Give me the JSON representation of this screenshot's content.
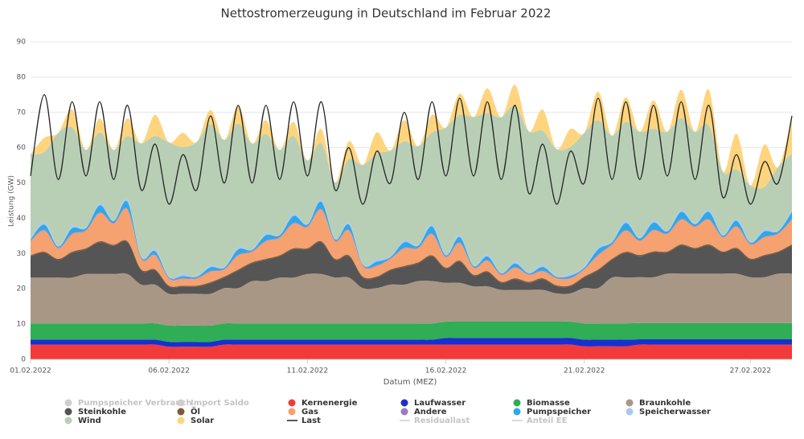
{
  "chart_data": {
    "type": "stacked_area",
    "title": "Nettostromerzeugung in Deutschland im Februar 2022",
    "xlabel": "Datum (MEZ)",
    "ylabel": "Leistung (GW)",
    "x": [
      0,
      12,
      24,
      36,
      48,
      60,
      72,
      84,
      96,
      108,
      120,
      132,
      144,
      156,
      168,
      180,
      192,
      204,
      216,
      228,
      240,
      252,
      264,
      276,
      288,
      300,
      312,
      324,
      336,
      348,
      360,
      372,
      384,
      396,
      408,
      420,
      432,
      444,
      456,
      468,
      480,
      492,
      504,
      516,
      528,
      540,
      552,
      564,
      576,
      588,
      600,
      612,
      624,
      636,
      648,
      660
    ],
    "xlim": [
      0,
      660
    ],
    "xticks": [
      {
        "value": 0,
        "label": "01.02.2022"
      },
      {
        "value": 120,
        "label": "06.02.2022"
      },
      {
        "value": 240,
        "label": "11.02.2022"
      },
      {
        "value": 360,
        "label": "16.02.2022"
      },
      {
        "value": 480,
        "label": "21.02.2022"
      },
      {
        "value": 624,
        "label": "27.02.2022"
      }
    ],
    "ylim": [
      0,
      90
    ],
    "yticks": [
      0,
      10,
      20,
      30,
      40,
      50,
      60,
      70,
      80,
      90
    ],
    "grid": true,
    "series": [
      {
        "name": "Pumpspeicher Verbrauch",
        "kind": "area",
        "hidden": true
      },
      {
        "name": "Import Saldo",
        "kind": "area",
        "hidden": true
      },
      {
        "name": "Kernenergie",
        "kind": "area",
        "color": "#f23a3a",
        "values": [
          4.2,
          4.2,
          4.2,
          4.2,
          4.2,
          4.2,
          4.2,
          4.2,
          4.2,
          4.2,
          3.6,
          3.6,
          3.6,
          3.6,
          4.2,
          4.2,
          4.2,
          4.2,
          4.2,
          4.2,
          4.2,
          4.2,
          4.2,
          4.2,
          4.2,
          4.2,
          4.2,
          4.2,
          4.2,
          4.2,
          4.2,
          4.2,
          4.2,
          4.2,
          4.2,
          4.2,
          4.2,
          4.2,
          4.2,
          4.2,
          3.7,
          3.7,
          3.7,
          3.7,
          4.2,
          4.2,
          4.2,
          4.2,
          4.2,
          4.2,
          4.2,
          4.2,
          4.2,
          4.2,
          4.2,
          4.2
        ]
      },
      {
        "name": "Laufwasser",
        "kind": "area",
        "color": "#1a2fd0",
        "values": [
          1.4,
          1.4,
          1.4,
          1.4,
          1.4,
          1.4,
          1.4,
          1.4,
          1.4,
          1.4,
          1.4,
          1.4,
          1.4,
          1.4,
          1.4,
          1.4,
          1.4,
          1.4,
          1.4,
          1.4,
          1.4,
          1.4,
          1.4,
          1.4,
          1.4,
          1.4,
          1.4,
          1.4,
          1.4,
          1.4,
          1.9,
          1.9,
          1.9,
          1.9,
          1.9,
          1.9,
          1.9,
          1.9,
          1.9,
          1.9,
          1.9,
          1.9,
          1.9,
          1.9,
          1.5,
          1.5,
          1.5,
          1.5,
          1.5,
          1.5,
          1.5,
          1.5,
          1.5,
          1.5,
          1.5,
          1.5
        ]
      },
      {
        "name": "Biomasse",
        "kind": "area",
        "color": "#2fae55",
        "values": [
          4.6,
          4.6,
          4.6,
          4.6,
          4.6,
          4.6,
          4.6,
          4.6,
          4.6,
          4.6,
          4.6,
          4.6,
          4.6,
          4.6,
          4.6,
          4.6,
          4.6,
          4.6,
          4.6,
          4.6,
          4.6,
          4.6,
          4.6,
          4.6,
          4.6,
          4.6,
          4.6,
          4.6,
          4.6,
          4.6,
          4.6,
          4.6,
          4.6,
          4.6,
          4.6,
          4.6,
          4.6,
          4.6,
          4.6,
          4.6,
          4.6,
          4.6,
          4.6,
          4.6,
          4.6,
          4.6,
          4.6,
          4.6,
          4.6,
          4.6,
          4.6,
          4.6,
          4.6,
          4.6,
          4.6,
          4.6
        ]
      },
      {
        "name": "Braunkohle",
        "kind": "area",
        "color": "#a99786",
        "values": [
          13,
          13,
          13,
          13,
          14,
          14,
          14,
          14,
          11,
          11,
          9,
          9,
          9,
          9,
          10,
          10,
          12,
          12,
          13,
          13,
          14,
          14,
          13,
          13,
          10,
          10,
          11,
          11,
          12,
          12,
          11,
          11,
          10,
          10,
          9,
          9,
          9,
          9,
          8,
          8,
          10,
          10,
          13,
          13,
          13,
          13,
          14,
          14,
          14,
          14,
          14,
          14,
          13,
          13,
          14,
          14
        ]
      },
      {
        "name": "Steinkohle",
        "kind": "area",
        "color": "#555555",
        "values": [
          6,
          7,
          5,
          7,
          7,
          9,
          8,
          9,
          4,
          4,
          2,
          2,
          2,
          3,
          3,
          5,
          5,
          6,
          6,
          8,
          7,
          9,
          5,
          6,
          3,
          3,
          4,
          5,
          5,
          7,
          4,
          6,
          3,
          4,
          2,
          3,
          2,
          3,
          2,
          2,
          3,
          5,
          5,
          7,
          6,
          7,
          6,
          8,
          7,
          8,
          6,
          7,
          5,
          6,
          6,
          8
        ]
      },
      {
        "name": "Öl",
        "kind": "area",
        "color": "#7a5a3a",
        "values": [
          0.3,
          0.3,
          0.3,
          0.3,
          0.3,
          0.3,
          0.3,
          0.3,
          0.3,
          0.3,
          0.3,
          0.3,
          0.3,
          0.3,
          0.3,
          0.3,
          0.3,
          0.3,
          0.3,
          0.3,
          0.3,
          0.3,
          0.3,
          0.3,
          0.3,
          0.3,
          0.3,
          0.3,
          0.3,
          0.3,
          0.3,
          0.3,
          0.3,
          0.3,
          0.3,
          0.3,
          0.3,
          0.3,
          0.3,
          0.3,
          0.3,
          0.3,
          0.3,
          0.3,
          0.3,
          0.3,
          0.3,
          0.3,
          0.3,
          0.3,
          0.3,
          0.3,
          0.3,
          0.3,
          0.3,
          0.3
        ]
      },
      {
        "name": "Gas",
        "kind": "area",
        "color": "#f5a170",
        "values": [
          4,
          6,
          3,
          5,
          5,
          8,
          6,
          9,
          3,
          4,
          2,
          2,
          2,
          3,
          2,
          4,
          3,
          5,
          5,
          7,
          6,
          9,
          5,
          7,
          3,
          3,
          3,
          5,
          4,
          6,
          3,
          5,
          2,
          3,
          2,
          3,
          2,
          2,
          2,
          2,
          2,
          4,
          4,
          6,
          4,
          6,
          5,
          7,
          6,
          7,
          4,
          6,
          4,
          5,
          5,
          7
        ]
      },
      {
        "name": "Andere",
        "kind": "area",
        "color": "#9a7cc0",
        "values": [
          0.2,
          0.2,
          0.2,
          0.2,
          0.2,
          0.2,
          0.2,
          0.2,
          0.2,
          0.2,
          0.2,
          0.2,
          0.2,
          0.2,
          0.2,
          0.2,
          0.2,
          0.2,
          0.2,
          0.2,
          0.2,
          0.2,
          0.2,
          0.2,
          0.2,
          0.2,
          0.2,
          0.2,
          0.2,
          0.2,
          0.2,
          0.2,
          0.2,
          0.2,
          0.2,
          0.2,
          0.2,
          0.2,
          0.2,
          0.2,
          0.2,
          0.2,
          0.2,
          0.2,
          0.2,
          0.2,
          0.2,
          0.2,
          0.2,
          0.2,
          0.2,
          0.2,
          0.2,
          0.2,
          0.2,
          0.2
        ]
      },
      {
        "name": "Pumpspeicher",
        "kind": "area",
        "color": "#2ea8e8",
        "values": [
          0.3,
          1.5,
          0.3,
          1.5,
          0.5,
          2,
          0.5,
          2,
          0.3,
          1,
          0.2,
          0.5,
          0.3,
          1,
          0.3,
          1.5,
          0.3,
          1.5,
          0.5,
          2,
          0.5,
          2,
          0.3,
          1.5,
          0.2,
          1,
          0.3,
          1.5,
          0.5,
          2,
          0.3,
          1.5,
          0.3,
          1,
          0.2,
          1,
          0.2,
          1,
          0.2,
          0.5,
          0.3,
          1.5,
          0.5,
          2,
          0.5,
          2,
          0.5,
          2,
          0.5,
          2,
          0.3,
          1.5,
          0.3,
          1.5,
          0.5,
          2
        ]
      },
      {
        "name": "Speicherwasser",
        "kind": "area",
        "color": "#a9c8f2",
        "values": [
          0.2,
          0.6,
          0.2,
          0.6,
          0.2,
          0.6,
          0.2,
          0.6,
          0.2,
          0.6,
          0.2,
          0.6,
          0.2,
          0.6,
          0.2,
          0.6,
          0.2,
          0.6,
          0.2,
          0.6,
          0.2,
          0.6,
          0.2,
          0.6,
          0.2,
          0.6,
          0.2,
          0.6,
          0.2,
          0.6,
          0.2,
          0.6,
          0.2,
          0.6,
          0.2,
          0.6,
          0.2,
          0.6,
          0.2,
          0.6,
          0.2,
          0.6,
          0.2,
          0.6,
          0.2,
          0.6,
          0.2,
          0.6,
          0.2,
          0.6,
          0.2,
          0.6,
          0.2,
          0.6,
          0.2,
          0.6
        ]
      },
      {
        "name": "Wind",
        "kind": "area",
        "color": "#b8cfb5",
        "values": [
          24,
          20,
          32,
          28,
          22,
          20,
          20,
          18,
          32,
          32,
          38,
          36,
          38,
          40,
          36,
          35,
          30,
          28,
          24,
          22,
          18,
          16,
          16,
          18,
          28,
          30,
          30,
          28,
          28,
          26,
          36,
          34,
          42,
          40,
          44,
          44,
          40,
          38,
          36,
          36,
          38,
          36,
          30,
          28,
          30,
          26,
          28,
          26,
          26,
          24,
          18,
          14,
          16,
          12,
          18,
          16
        ]
      },
      {
        "name": "Solar",
        "kind": "area",
        "color": "#ffd47e",
        "values": [
          0,
          4,
          0,
          5,
          0,
          4,
          0,
          5,
          0,
          6,
          0,
          4,
          0,
          4,
          0,
          5,
          0,
          4,
          0,
          4,
          0,
          4,
          0,
          5,
          0,
          6,
          0,
          6,
          0,
          5,
          0,
          6,
          0,
          7,
          0,
          6,
          0,
          6,
          0,
          5,
          0,
          8,
          0,
          7,
          0,
          8,
          0,
          8,
          0,
          10,
          0,
          10,
          0,
          12,
          0,
          10
        ]
      },
      {
        "name": "Last",
        "kind": "line",
        "color": "#222222",
        "values": [
          52,
          75,
          51,
          73,
          52,
          73,
          51,
          72,
          48,
          61,
          44,
          58,
          48,
          69,
          50,
          72,
          50,
          72,
          51,
          73,
          52,
          73,
          48,
          60,
          44,
          59,
          50,
          70,
          51,
          73,
          52,
          74,
          52,
          73,
          51,
          72,
          47,
          61,
          44,
          59,
          50,
          74,
          51,
          73,
          51,
          72,
          52,
          73,
          51,
          72,
          46,
          58,
          44,
          56,
          50,
          69
        ]
      },
      {
        "name": "Residuallast",
        "kind": "line",
        "hidden": true
      },
      {
        "name": "Anteil EE",
        "kind": "line",
        "hidden": true
      }
    ]
  }
}
